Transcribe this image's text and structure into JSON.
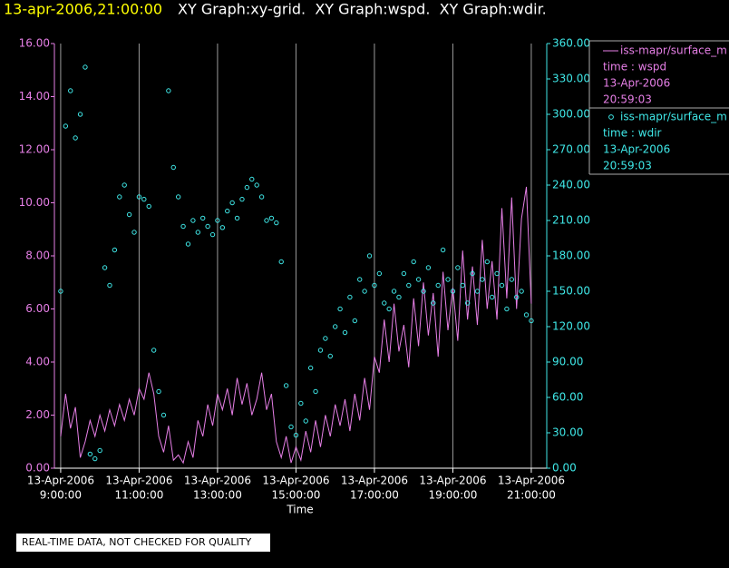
{
  "chart_data": {
    "type": "line-scatter",
    "title_time": "13-apr-2006,21:00:00",
    "title": "XY Graph:xy-grid.  XY Graph:wspd.  XY Graph:wdir.",
    "xlabel": "Time",
    "note": "REAL-TIME DATA, NOT CHECKED FOR QUALITY",
    "grid": true,
    "xlim": [
      8.84,
      21.14
    ],
    "xticks": [
      {
        "value": 9,
        "label": "9:00:00",
        "date": "13-Apr-2006"
      },
      {
        "value": 11,
        "label": "11:00:00",
        "date": "13-Apr-2006"
      },
      {
        "value": 13,
        "label": "13:00:00",
        "date": "13-Apr-2006"
      },
      {
        "value": 15,
        "label": "15:00:00",
        "date": "13-Apr-2006"
      },
      {
        "value": 17,
        "label": "17:00:00",
        "date": "13-Apr-2006"
      },
      {
        "value": 19,
        "label": "19:00:00",
        "date": "13-Apr-2006"
      },
      {
        "value": 21,
        "label": "21:00:00",
        "date": "13-Apr-2006"
      }
    ],
    "ylim": [
      0,
      16
    ],
    "yticks": [
      {
        "value": 0,
        "label": "0.00"
      },
      {
        "value": 2,
        "label": "2.00"
      },
      {
        "value": 4,
        "label": "4.00"
      },
      {
        "value": 6,
        "label": "6.00"
      },
      {
        "value": 8,
        "label": "8.00"
      },
      {
        "value": 10,
        "label": "10.00"
      },
      {
        "value": 12,
        "label": "12.00"
      },
      {
        "value": 14,
        "label": "14.00"
      },
      {
        "value": 16,
        "label": "16.00"
      }
    ],
    "y2lim": [
      0,
      360
    ],
    "y2ticks": [
      {
        "value": 0,
        "label": "0.00"
      },
      {
        "value": 30,
        "label": "30.00"
      },
      {
        "value": 60,
        "label": "60.00"
      },
      {
        "value": 90,
        "label": "90.00"
      },
      {
        "value": 120,
        "label": "120.00"
      },
      {
        "value": 150,
        "label": "150.00"
      },
      {
        "value": 180,
        "label": "180.00"
      },
      {
        "value": 210,
        "label": "210.00"
      },
      {
        "value": 240,
        "label": "240.00"
      },
      {
        "value": 270,
        "label": "270.00"
      },
      {
        "value": 300,
        "label": "300.00"
      },
      {
        "value": 330,
        "label": "330.00"
      },
      {
        "value": 360,
        "label": "360.00"
      }
    ],
    "x": [
      9,
      9.125,
      9.25,
      9.375,
      9.5,
      9.625,
      9.75,
      9.875,
      10,
      10.125,
      10.25,
      10.375,
      10.5,
      10.625,
      10.75,
      10.875,
      11,
      11.125,
      11.25,
      11.375,
      11.5,
      11.625,
      11.75,
      11.875,
      12,
      12.125,
      12.25,
      12.375,
      12.5,
      12.625,
      12.75,
      12.875,
      13,
      13.125,
      13.25,
      13.375,
      13.5,
      13.625,
      13.75,
      13.875,
      14,
      14.125,
      14.25,
      14.375,
      14.5,
      14.625,
      14.75,
      14.875,
      15,
      15.125,
      15.25,
      15.375,
      15.5,
      15.625,
      15.75,
      15.875,
      16,
      16.125,
      16.25,
      16.375,
      16.5,
      16.625,
      16.75,
      16.875,
      17,
      17.125,
      17.25,
      17.375,
      17.5,
      17.625,
      17.75,
      17.875,
      18,
      18.125,
      18.25,
      18.375,
      18.5,
      18.625,
      18.75,
      18.875,
      19,
      19.125,
      19.25,
      19.375,
      19.5,
      19.625,
      19.75,
      19.875,
      20,
      20.125,
      20.25,
      20.375,
      20.5,
      20.625,
      20.75,
      20.875,
      21
    ],
    "series": [
      {
        "name": "iss-mapr/surface_m",
        "kind": "line",
        "color": "#e67fe6",
        "legend_lines": [
          "time : wspd",
          "13-Apr-2006",
          "20:59:03"
        ],
        "values": [
          1.2,
          2.8,
          1.5,
          2.3,
          0.4,
          1.0,
          1.8,
          1.2,
          2.0,
          1.4,
          2.2,
          1.6,
          2.4,
          1.8,
          2.6,
          2.0,
          3.0,
          2.6,
          3.6,
          2.8,
          1.2,
          0.6,
          1.6,
          0.3,
          0.5,
          0.2,
          1.0,
          0.4,
          1.8,
          1.2,
          2.4,
          1.6,
          2.8,
          2.2,
          3.0,
          2.0,
          3.4,
          2.4,
          3.2,
          2.0,
          2.6,
          3.6,
          2.2,
          2.8,
          1.0,
          0.4,
          1.2,
          0.2,
          0.8,
          0.3,
          1.4,
          0.6,
          1.8,
          0.8,
          2.0,
          1.2,
          2.4,
          1.6,
          2.6,
          1.4,
          2.8,
          1.8,
          3.4,
          2.2,
          4.2,
          3.6,
          5.6,
          4.0,
          6.2,
          4.4,
          5.4,
          3.8,
          6.4,
          4.6,
          7.0,
          5.0,
          6.6,
          4.2,
          7.4,
          5.2,
          6.8,
          4.8,
          8.2,
          5.6,
          7.6,
          5.4,
          8.6,
          6.0,
          7.8,
          5.6,
          9.8,
          6.4,
          10.2,
          6.0,
          9.4,
          10.6,
          6.2
        ]
      },
      {
        "name": "iss-mapr/surface_m",
        "kind": "scatter",
        "axis": "y2",
        "color": "#3fe8e8",
        "legend_lines": [
          "time : wdir",
          "13-Apr-2006",
          "20:59:03"
        ],
        "values": [
          150,
          290,
          320,
          280,
          300,
          340,
          12,
          8,
          15,
          170,
          155,
          185,
          230,
          240,
          215,
          200,
          230,
          228,
          222,
          100,
          65,
          45,
          320,
          255,
          230,
          205,
          190,
          210,
          200,
          212,
          205,
          198,
          210,
          204,
          218,
          225,
          212,
          228,
          238,
          245,
          240,
          230,
          210,
          212,
          208,
          175,
          70,
          35,
          28,
          55,
          40,
          85,
          65,
          100,
          110,
          95,
          120,
          135,
          115,
          145,
          125,
          160,
          150,
          180,
          155,
          165,
          140,
          135,
          150,
          145,
          165,
          155,
          175,
          160,
          150,
          170,
          140,
          155,
          185,
          160,
          150,
          170,
          155,
          140,
          165,
          150,
          160,
          175,
          145,
          165,
          155,
          135,
          160,
          145,
          150,
          130,
          125
        ]
      }
    ]
  }
}
